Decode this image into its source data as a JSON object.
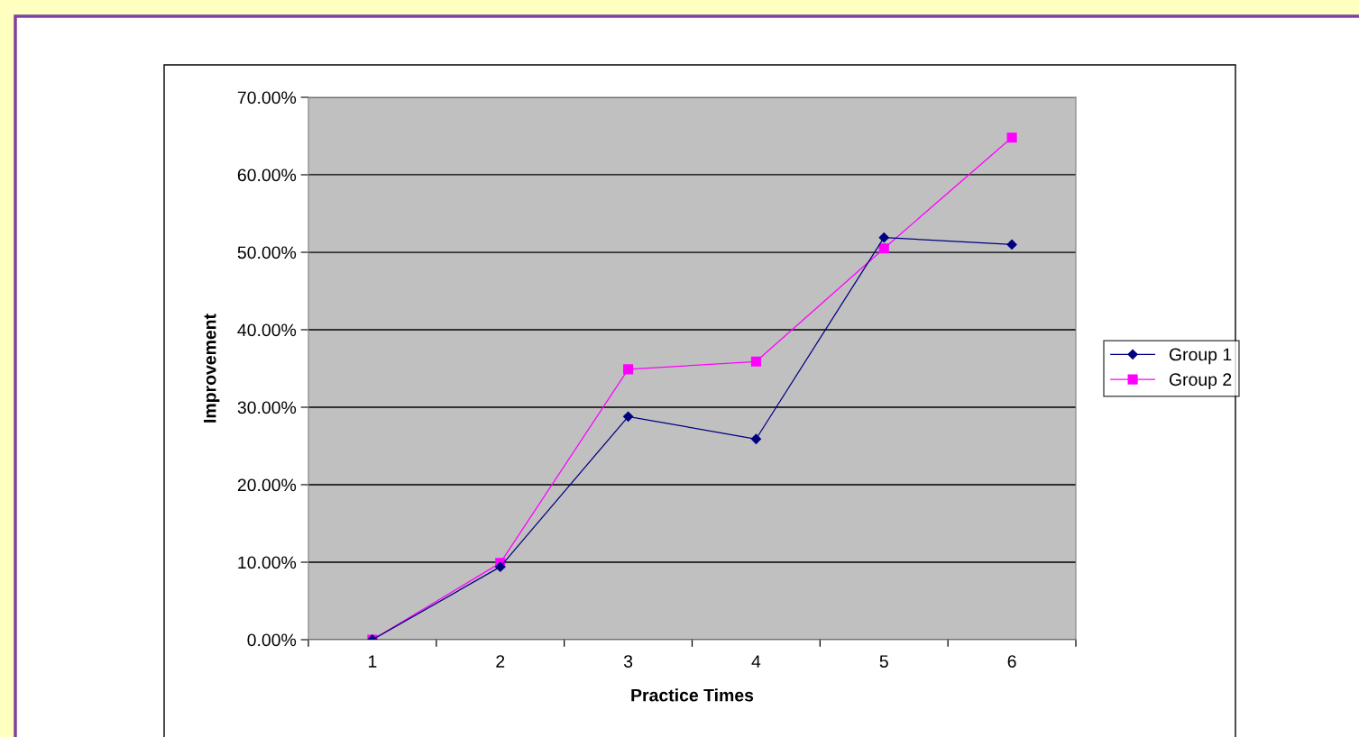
{
  "chart_data": {
    "type": "line",
    "xlabel": "Practice Times",
    "ylabel": "Improvement",
    "categories": [
      "1",
      "2",
      "3",
      "4",
      "5",
      "6"
    ],
    "series": [
      {
        "name": "Group 1",
        "color": "#000080",
        "marker": "diamond",
        "values": [
          0,
          9.4,
          28.8,
          25.9,
          51.9,
          51.0
        ]
      },
      {
        "name": "Group 2",
        "color": "#ff00ff",
        "marker": "square",
        "values": [
          0,
          9.9,
          34.9,
          35.9,
          50.5,
          64.8
        ]
      }
    ],
    "ylim": [
      0,
      70
    ],
    "yticks": [
      {
        "value": 0,
        "label": "0.00%"
      },
      {
        "value": 10,
        "label": "10.00%"
      },
      {
        "value": 20,
        "label": "20.00%"
      },
      {
        "value": 30,
        "label": "30.00%"
      },
      {
        "value": 40,
        "label": "40.00%"
      },
      {
        "value": 50,
        "label": "50.00%"
      },
      {
        "value": 60,
        "label": "60.00%"
      },
      {
        "value": 70,
        "label": "70.00%"
      }
    ],
    "grid": "y",
    "legend": "right",
    "line_style": "solid"
  }
}
